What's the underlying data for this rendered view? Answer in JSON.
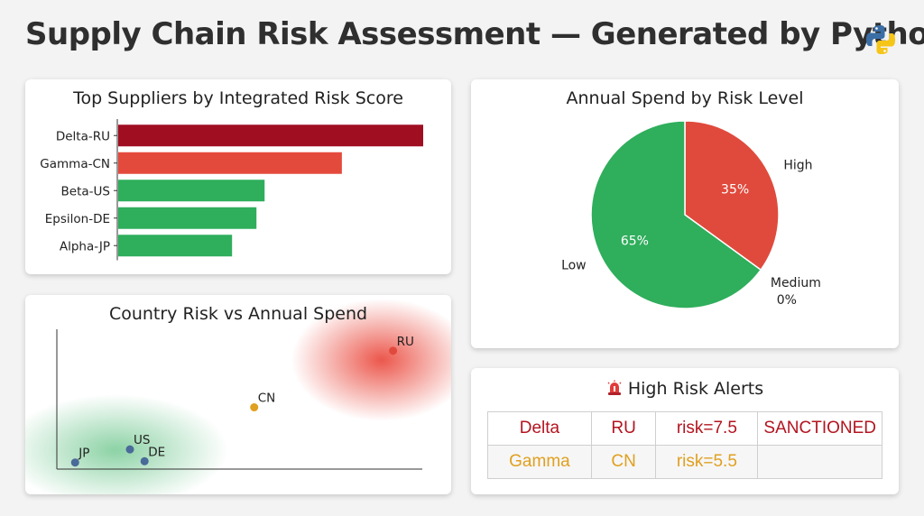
{
  "header": {
    "title": "Supply Chain Risk Assessment — Generated by Python"
  },
  "colors": {
    "high": "#a00e22",
    "elevated": "#e44a3c",
    "low": "#2fae5c",
    "amber": "#e0a020",
    "point": "#4a6a99"
  },
  "chart_data": [
    {
      "type": "bar",
      "orientation": "horizontal",
      "title": "Top Suppliers by Integrated Risk Score",
      "categories": [
        "Delta-RU",
        "Gamma-CN",
        "Beta-US",
        "Epsilon-DE",
        "Alpha-JP"
      ],
      "values": [
        7.5,
        5.5,
        3.6,
        3.4,
        2.8
      ],
      "bar_colors": [
        "#a00e22",
        "#e44a3c",
        "#2fae5c",
        "#2fae5c",
        "#2fae5c"
      ],
      "xlim": [
        0,
        7.5
      ]
    },
    {
      "type": "pie",
      "title": "Annual Spend by Risk Level",
      "labels": [
        "High",
        "Medium",
        "Low"
      ],
      "values": [
        35,
        0,
        65
      ],
      "value_labels": [
        "35%",
        "0%",
        "65%"
      ],
      "slice_colors": [
        "#e04a3c",
        "#e0a020",
        "#2fae5c"
      ]
    },
    {
      "type": "scatter",
      "title": "Country Risk vs Annual Spend",
      "points": [
        {
          "label": "JP",
          "x": 0.5,
          "y": 0.5,
          "color": "#4a6a99"
        },
        {
          "label": "US",
          "x": 2.0,
          "y": 1.5,
          "color": "#4a6a99"
        },
        {
          "label": "DE",
          "x": 2.4,
          "y": 0.6,
          "color": "#4a6a99"
        },
        {
          "label": "CN",
          "x": 5.4,
          "y": 4.7,
          "color": "#e0a020"
        },
        {
          "label": "RU",
          "x": 9.2,
          "y": 9.0,
          "color": "#e04a3c"
        }
      ],
      "xlim": [
        0,
        10
      ],
      "ylim": [
        0,
        10.5
      ]
    }
  ],
  "alerts": {
    "title": "High Risk Alerts",
    "rows": [
      {
        "name": "Delta",
        "country": "RU",
        "risk": "risk=7.5",
        "status": "SANCTIONED",
        "color": "#b3141f"
      },
      {
        "name": "Gamma",
        "country": "CN",
        "risk": "risk=5.5",
        "status": "",
        "color": "#e0a020"
      }
    ]
  }
}
